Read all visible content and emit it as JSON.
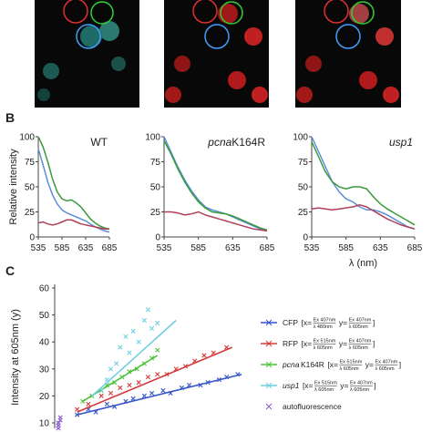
{
  "panel_labels": [
    "B",
    "C"
  ],
  "chart_data": [
    {
      "type": "line",
      "title": "WT",
      "ylabel": "Relative intensity",
      "x": [
        535,
        545,
        555,
        565,
        575,
        585,
        595,
        605,
        615,
        625,
        635,
        645,
        655,
        665,
        675,
        685
      ],
      "xlim": [
        535,
        685
      ],
      "xticks": [
        535,
        585,
        635,
        685
      ],
      "ylim": [
        0,
        100
      ],
      "yticks": [
        0,
        25,
        50,
        75,
        100
      ],
      "series": [
        {
          "color": "#3a9a3a",
          "values": [
            100,
            90,
            75,
            58,
            45,
            38,
            36,
            37,
            34,
            30,
            24,
            18,
            14,
            11,
            9,
            8
          ]
        },
        {
          "color": "#5b8fd6",
          "values": [
            88,
            72,
            55,
            42,
            33,
            27,
            24,
            22,
            20,
            18,
            16,
            13,
            10,
            8,
            6,
            5
          ]
        },
        {
          "color": "#b0405a",
          "values": [
            14,
            15,
            13,
            12,
            13,
            15,
            17,
            17,
            15,
            13,
            12,
            11,
            10,
            9,
            8,
            8
          ]
        }
      ]
    },
    {
      "type": "line",
      "title_italic": "pcna",
      "title": "K164R",
      "x": [
        535,
        545,
        555,
        565,
        575,
        585,
        595,
        605,
        615,
        625,
        635,
        645,
        655,
        665,
        675,
        685
      ],
      "xlim": [
        535,
        685
      ],
      "xticks": [
        535,
        585,
        635,
        685
      ],
      "ylim": [
        0,
        100
      ],
      "yticks": [
        0,
        25,
        50,
        75,
        100
      ],
      "series": [
        {
          "color": "#5b8fd6",
          "values": [
            100,
            85,
            70,
            57,
            46,
            37,
            30,
            27,
            25,
            23,
            20,
            17,
            14,
            11,
            8,
            6
          ]
        },
        {
          "color": "#3a9a3a",
          "values": [
            96,
            83,
            68,
            55,
            44,
            35,
            29,
            25,
            24,
            23,
            21,
            18,
            15,
            12,
            9,
            7
          ]
        },
        {
          "color": "#b0405a",
          "values": [
            25,
            25,
            24,
            22,
            23,
            25,
            22,
            20,
            18,
            16,
            14,
            12,
            10,
            8,
            7,
            6
          ]
        }
      ]
    },
    {
      "type": "line",
      "title_italic": "usp1",
      "xlabel": "λ (nm)",
      "x": [
        535,
        545,
        555,
        565,
        575,
        585,
        595,
        605,
        615,
        625,
        635,
        645,
        655,
        665,
        675,
        685
      ],
      "xlim": [
        535,
        685
      ],
      "xticks": [
        535,
        585,
        635,
        685
      ],
      "ylim": [
        0,
        100
      ],
      "yticks": [
        0,
        25,
        50,
        75,
        100
      ],
      "series": [
        {
          "color": "#5b8fd6",
          "values": [
            100,
            85,
            70,
            55,
            45,
            38,
            35,
            30,
            27,
            27,
            25,
            22,
            18,
            14,
            10,
            8
          ]
        },
        {
          "color": "#3a9a3a",
          "values": [
            95,
            80,
            65,
            55,
            50,
            48,
            50,
            50,
            48,
            40,
            33,
            28,
            24,
            20,
            16,
            12
          ]
        },
        {
          "color": "#b0405a",
          "values": [
            28,
            29,
            28,
            27,
            28,
            29,
            30,
            32,
            30,
            26,
            22,
            18,
            15,
            12,
            10,
            8
          ]
        }
      ]
    },
    {
      "type": "scatter",
      "ylabel": "Intensity at 605nm (y)",
      "xlim": [
        0,
        100
      ],
      "ylim": [
        10,
        60
      ],
      "yticks": [
        10,
        20,
        30,
        40,
        50,
        60
      ],
      "legend_parts": [
        "[x=",
        "y=",
        "]"
      ],
      "series": [
        {
          "name": "CFP",
          "color": "#3555c8",
          "x_ex": "Ex 407nm",
          "x_em": "λ 480nm",
          "y_ex": "Ex 407nm",
          "y_em": "λ 605nm",
          "x": [
            12,
            18,
            22,
            28,
            32,
            38,
            42,
            48,
            52,
            58,
            62,
            68,
            72,
            78,
            82,
            88,
            92,
            98
          ],
          "values": [
            13,
            15,
            14,
            17,
            16,
            18,
            19,
            20,
            21,
            22,
            21,
            23,
            24,
            24,
            25,
            26,
            27,
            28
          ],
          "trend_x": [
            12,
            100
          ],
          "trend_y": [
            13,
            28
          ]
        },
        {
          "name": "RFP",
          "color": "#d63a3a",
          "x_ex": "Ex 515nm",
          "x_em": "λ 605nm",
          "y_ex": "Ex 407nm",
          "y_em": "λ 605nm",
          "x": [
            12,
            18,
            25,
            30,
            35,
            40,
            45,
            50,
            55,
            60,
            65,
            70,
            75,
            80,
            85,
            92
          ],
          "values": [
            15,
            17,
            20,
            21,
            23,
            24,
            25,
            27,
            28,
            28,
            30,
            31,
            33,
            35,
            36,
            38
          ],
          "trend_x": [
            12,
            95
          ],
          "trend_y": [
            14,
            38
          ]
        },
        {
          "name_italic": "pcna",
          "name": "K164R",
          "color": "#4cc23a",
          "x_ex": "Ex 515nm",
          "x_em": "λ 605nm",
          "y_ex": "Ex 407nm",
          "y_em": "λ 605nm",
          "x": [
            15,
            20,
            25,
            28,
            32,
            36,
            40,
            44,
            48,
            52,
            55
          ],
          "values": [
            18,
            20,
            22,
            24,
            25,
            27,
            29,
            30,
            32,
            34,
            37
          ],
          "trend_x": [
            15,
            55
          ],
          "trend_y": [
            18,
            35
          ]
        },
        {
          "name_italic": "usp1",
          "color": "#6fd0e0",
          "x_ex": "Ex 515nm",
          "x_em": "λ 605nm",
          "y_ex": "Ex 407nm",
          "y_em": "λ 605nm",
          "x": [
            25,
            28,
            30,
            33,
            35,
            38,
            40,
            42,
            45,
            48,
            50,
            52,
            55
          ],
          "values": [
            22,
            26,
            30,
            32,
            38,
            42,
            36,
            44,
            40,
            48,
            52,
            45,
            47
          ],
          "trend_x": [
            20,
            65
          ],
          "trend_y": [
            20,
            48
          ]
        },
        {
          "name": "autofluorescence",
          "color": "#8a5ad0",
          "x": [
            2,
            2,
            2,
            3,
            3,
            2
          ],
          "values": [
            8,
            9,
            10,
            11,
            12,
            10
          ]
        }
      ]
    }
  ]
}
